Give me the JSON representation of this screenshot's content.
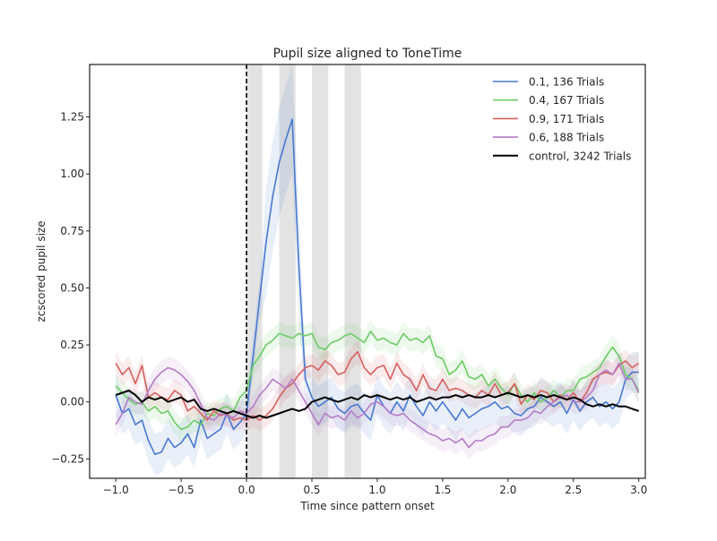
{
  "chart_data": {
    "type": "line",
    "title": "Pupil size aligned to ToneTime",
    "xlabel": "Time since pattern onset",
    "ylabel": "zcscored pupil size",
    "xlim": [
      -1.2,
      3.05
    ],
    "ylim": [
      -0.335,
      1.48
    ],
    "xticks": [
      -1.0,
      -0.5,
      0.0,
      0.5,
      1.0,
      1.5,
      2.0,
      2.5,
      3.0
    ],
    "xtick_labels": [
      "−1.0",
      "−0.5",
      "0.0",
      "0.5",
      "1.0",
      "1.5",
      "2.0",
      "2.5",
      "3.0"
    ],
    "yticks": [
      -0.25,
      0.0,
      0.25,
      0.5,
      0.75,
      1.0,
      1.25
    ],
    "ytick_labels": [
      "−0.25",
      "0.00",
      "0.25",
      "0.50",
      "0.75",
      "1.00",
      "1.25"
    ],
    "grid": false,
    "legend_position": "top-right",
    "vline_x": 0.0,
    "shaded_spans": [
      [
        0.0,
        0.12
      ],
      [
        0.25,
        0.375
      ],
      [
        0.5,
        0.625
      ],
      [
        0.75,
        0.875
      ]
    ],
    "series": [
      {
        "name": "0.1, 136 Trials",
        "color": "#4878d0",
        "x": [
          -1.0,
          -0.95,
          -0.9,
          -0.85,
          -0.8,
          -0.75,
          -0.7,
          -0.65,
          -0.6,
          -0.55,
          -0.5,
          -0.45,
          -0.4,
          -0.35,
          -0.3,
          -0.25,
          -0.2,
          -0.15,
          -0.1,
          -0.05,
          0.0,
          0.05,
          0.1,
          0.15,
          0.2,
          0.25,
          0.3,
          0.35,
          0.4,
          0.45,
          0.5,
          0.55,
          0.6,
          0.65,
          0.7,
          0.75,
          0.8,
          0.85,
          0.9,
          0.95,
          1.0,
          1.05,
          1.1,
          1.15,
          1.2,
          1.25,
          1.3,
          1.35,
          1.4,
          1.45,
          1.5,
          1.55,
          1.6,
          1.65,
          1.7,
          1.75,
          1.8,
          1.85,
          1.9,
          1.95,
          2.0,
          2.05,
          2.1,
          2.15,
          2.2,
          2.25,
          2.3,
          2.35,
          2.4,
          2.45,
          2.5,
          2.55,
          2.6,
          2.65,
          2.7,
          2.75,
          2.8,
          2.85,
          2.9,
          2.95,
          3.0
        ],
        "y": [
          0.03,
          -0.05,
          -0.03,
          -0.1,
          -0.08,
          -0.17,
          -0.23,
          -0.22,
          -0.16,
          -0.2,
          -0.18,
          -0.14,
          -0.2,
          -0.08,
          -0.16,
          -0.14,
          -0.12,
          -0.05,
          -0.12,
          -0.09,
          -0.05,
          0.2,
          0.45,
          0.7,
          0.9,
          1.05,
          1.15,
          1.24,
          0.6,
          0.1,
          0.02,
          -0.02,
          0.0,
          0.02,
          -0.03,
          -0.05,
          -0.02,
          -0.01,
          -0.05,
          -0.08,
          0.03,
          -0.02,
          -0.05,
          0.0,
          -0.04,
          0.03,
          -0.02,
          -0.06,
          0.0,
          -0.04,
          0.0,
          -0.04,
          -0.08,
          -0.03,
          -0.07,
          -0.05,
          -0.03,
          -0.02,
          0.0,
          -0.03,
          -0.02,
          -0.05,
          -0.06,
          -0.03,
          -0.02,
          0.02,
          0.0,
          -0.02,
          0.0,
          -0.05,
          0.01,
          -0.04,
          0.0,
          0.02,
          -0.02,
          0.0,
          -0.03,
          0.0,
          0.1,
          0.13,
          0.13
        ]
      },
      {
        "name": "0.4, 167 Trials",
        "color": "#6acc64",
        "x": [
          -1.0,
          -0.95,
          -0.9,
          -0.85,
          -0.8,
          -0.75,
          -0.7,
          -0.65,
          -0.6,
          -0.55,
          -0.5,
          -0.45,
          -0.4,
          -0.35,
          -0.3,
          -0.25,
          -0.2,
          -0.15,
          -0.1,
          -0.05,
          0.0,
          0.05,
          0.1,
          0.15,
          0.2,
          0.25,
          0.3,
          0.35,
          0.4,
          0.45,
          0.5,
          0.55,
          0.6,
          0.65,
          0.7,
          0.75,
          0.8,
          0.85,
          0.9,
          0.95,
          1.0,
          1.05,
          1.1,
          1.15,
          1.2,
          1.25,
          1.3,
          1.35,
          1.4,
          1.45,
          1.5,
          1.55,
          1.6,
          1.65,
          1.7,
          1.75,
          1.8,
          1.85,
          1.9,
          1.95,
          2.0,
          2.05,
          2.1,
          2.15,
          2.2,
          2.25,
          2.3,
          2.35,
          2.4,
          2.45,
          2.5,
          2.55,
          2.6,
          2.65,
          2.7,
          2.75,
          2.8,
          2.85,
          2.9,
          2.95,
          3.0
        ],
        "y": [
          0.07,
          0.04,
          0.01,
          -0.01,
          0.0,
          -0.04,
          -0.02,
          -0.05,
          -0.04,
          -0.09,
          -0.12,
          -0.11,
          -0.08,
          -0.1,
          -0.05,
          -0.06,
          -0.03,
          -0.02,
          -0.04,
          0.02,
          0.05,
          0.16,
          0.2,
          0.25,
          0.27,
          0.3,
          0.29,
          0.28,
          0.3,
          0.29,
          0.3,
          0.24,
          0.23,
          0.26,
          0.27,
          0.29,
          0.3,
          0.28,
          0.26,
          0.31,
          0.27,
          0.28,
          0.26,
          0.25,
          0.3,
          0.27,
          0.28,
          0.26,
          0.29,
          0.2,
          0.19,
          0.12,
          0.14,
          0.18,
          0.11,
          0.1,
          0.12,
          0.07,
          0.1,
          0.06,
          0.03,
          0.08,
          0.03,
          0.0,
          0.04,
          0.0,
          0.02,
          0.05,
          0.02,
          0.05,
          0.05,
          0.1,
          0.11,
          0.13,
          0.15,
          0.2,
          0.24,
          0.2,
          0.12,
          0.1,
          0.05
        ]
      },
      {
        "name": "0.9, 171 Trials",
        "color": "#d65f5f",
        "x": [
          -1.0,
          -0.95,
          -0.9,
          -0.85,
          -0.8,
          -0.75,
          -0.7,
          -0.65,
          -0.6,
          -0.55,
          -0.5,
          -0.45,
          -0.4,
          -0.35,
          -0.3,
          -0.25,
          -0.2,
          -0.15,
          -0.1,
          -0.05,
          0.0,
          0.05,
          0.1,
          0.15,
          0.2,
          0.25,
          0.3,
          0.35,
          0.4,
          0.45,
          0.5,
          0.55,
          0.6,
          0.65,
          0.7,
          0.75,
          0.8,
          0.85,
          0.9,
          0.95,
          1.0,
          1.05,
          1.1,
          1.15,
          1.2,
          1.25,
          1.3,
          1.35,
          1.4,
          1.45,
          1.5,
          1.55,
          1.6,
          1.65,
          1.7,
          1.75,
          1.8,
          1.85,
          1.9,
          1.95,
          2.0,
          2.05,
          2.1,
          2.15,
          2.2,
          2.25,
          2.3,
          2.35,
          2.4,
          2.45,
          2.5,
          2.55,
          2.6,
          2.65,
          2.7,
          2.75,
          2.8,
          2.85,
          2.9,
          2.95,
          3.0
        ],
        "y": [
          0.17,
          0.12,
          0.15,
          0.08,
          0.16,
          0.02,
          0.04,
          0.02,
          0.01,
          0.05,
          0.03,
          -0.04,
          -0.02,
          -0.05,
          -0.08,
          -0.04,
          -0.06,
          -0.05,
          -0.08,
          -0.07,
          -0.08,
          -0.06,
          -0.08,
          -0.06,
          -0.03,
          0.02,
          0.06,
          0.08,
          0.12,
          0.15,
          0.16,
          0.14,
          0.18,
          0.16,
          0.12,
          0.13,
          0.19,
          0.22,
          0.15,
          0.12,
          0.15,
          0.16,
          0.1,
          0.17,
          0.12,
          0.1,
          0.05,
          0.12,
          0.06,
          0.05,
          0.1,
          0.05,
          0.06,
          0.05,
          0.03,
          0.02,
          0.05,
          0.03,
          0.08,
          0.03,
          0.04,
          0.08,
          -0.01,
          0.03,
          0.01,
          0.05,
          0.04,
          0.0,
          0.03,
          0.01,
          0.04,
          0.0,
          0.04,
          0.1,
          0.12,
          0.13,
          0.12,
          0.16,
          0.18,
          0.15,
          0.17
        ]
      },
      {
        "name": "0.6, 188 Trials",
        "color": "#b47cc7",
        "x": [
          -1.0,
          -0.95,
          -0.9,
          -0.85,
          -0.8,
          -0.75,
          -0.7,
          -0.65,
          -0.6,
          -0.55,
          -0.5,
          -0.45,
          -0.4,
          -0.35,
          -0.3,
          -0.25,
          -0.2,
          -0.15,
          -0.1,
          -0.05,
          0.0,
          0.05,
          0.1,
          0.15,
          0.2,
          0.25,
          0.3,
          0.35,
          0.4,
          0.45,
          0.5,
          0.55,
          0.6,
          0.65,
          0.7,
          0.75,
          0.8,
          0.85,
          0.9,
          0.95,
          1.0,
          1.05,
          1.1,
          1.15,
          1.2,
          1.25,
          1.3,
          1.35,
          1.4,
          1.45,
          1.5,
          1.55,
          1.6,
          1.65,
          1.7,
          1.75,
          1.8,
          1.85,
          1.9,
          1.95,
          2.0,
          2.05,
          2.1,
          2.15,
          2.2,
          2.25,
          2.3,
          2.35,
          2.4,
          2.45,
          2.5,
          2.55,
          2.6,
          2.65,
          2.7,
          2.75,
          2.8,
          2.85,
          2.9,
          2.95,
          3.0
        ],
        "y": [
          -0.1,
          -0.05,
          0.02,
          0.0,
          -0.01,
          0.05,
          0.1,
          0.13,
          0.15,
          0.14,
          0.12,
          0.09,
          0.05,
          -0.01,
          -0.07,
          -0.08,
          -0.05,
          -0.06,
          -0.07,
          -0.04,
          -0.05,
          -0.02,
          0.03,
          0.06,
          0.1,
          0.08,
          0.06,
          0.1,
          0.05,
          0.0,
          -0.05,
          -0.1,
          -0.05,
          -0.07,
          -0.06,
          -0.08,
          -0.04,
          -0.07,
          -0.05,
          -0.01,
          0.0,
          -0.02,
          -0.05,
          -0.06,
          -0.05,
          -0.08,
          -0.1,
          -0.12,
          -0.14,
          -0.15,
          -0.17,
          -0.16,
          -0.18,
          -0.16,
          -0.2,
          -0.17,
          -0.17,
          -0.15,
          -0.14,
          -0.11,
          -0.11,
          -0.08,
          -0.08,
          -0.07,
          -0.04,
          -0.05,
          -0.02,
          0.0,
          0.02,
          0.03,
          0.0,
          0.0,
          0.02,
          0.05,
          0.12,
          0.14,
          0.12,
          0.17,
          0.1,
          0.1,
          0.04
        ]
      },
      {
        "name": "control, 3242 Trials",
        "color": "#000000",
        "x": [
          -1.0,
          -0.95,
          -0.9,
          -0.85,
          -0.8,
          -0.75,
          -0.7,
          -0.65,
          -0.6,
          -0.55,
          -0.5,
          -0.45,
          -0.4,
          -0.35,
          -0.3,
          -0.25,
          -0.2,
          -0.15,
          -0.1,
          -0.05,
          0.0,
          0.05,
          0.1,
          0.15,
          0.2,
          0.25,
          0.3,
          0.35,
          0.4,
          0.45,
          0.5,
          0.55,
          0.6,
          0.65,
          0.7,
          0.75,
          0.8,
          0.85,
          0.9,
          0.95,
          1.0,
          1.05,
          1.1,
          1.15,
          1.2,
          1.25,
          1.3,
          1.35,
          1.4,
          1.45,
          1.5,
          1.55,
          1.6,
          1.65,
          1.7,
          1.75,
          1.8,
          1.85,
          1.9,
          1.95,
          2.0,
          2.05,
          2.1,
          2.15,
          2.2,
          2.25,
          2.3,
          2.35,
          2.4,
          2.45,
          2.5,
          2.55,
          2.6,
          2.65,
          2.7,
          2.75,
          2.8,
          2.85,
          2.9,
          2.95,
          3.0
        ],
        "y": [
          0.03,
          0.04,
          0.05,
          0.03,
          0.0,
          0.02,
          0.01,
          0.02,
          0.0,
          0.01,
          0.02,
          0.0,
          0.01,
          -0.03,
          -0.04,
          -0.03,
          -0.04,
          -0.05,
          -0.04,
          -0.05,
          -0.06,
          -0.07,
          -0.06,
          -0.07,
          -0.06,
          -0.05,
          -0.04,
          -0.03,
          -0.04,
          -0.03,
          0.0,
          0.01,
          0.02,
          0.01,
          0.0,
          0.01,
          0.02,
          0.01,
          0.03,
          0.02,
          0.03,
          0.02,
          0.01,
          0.02,
          0.01,
          0.02,
          0.0,
          0.01,
          0.02,
          0.01,
          0.02,
          0.02,
          0.03,
          0.02,
          0.03,
          0.02,
          0.02,
          0.03,
          0.02,
          0.03,
          0.04,
          0.03,
          0.02,
          0.03,
          0.02,
          0.03,
          0.02,
          0.03,
          0.02,
          0.01,
          0.02,
          0.01,
          -0.01,
          -0.02,
          -0.01,
          -0.02,
          -0.01,
          -0.02,
          -0.02,
          -0.03,
          -0.04
        ]
      }
    ]
  }
}
